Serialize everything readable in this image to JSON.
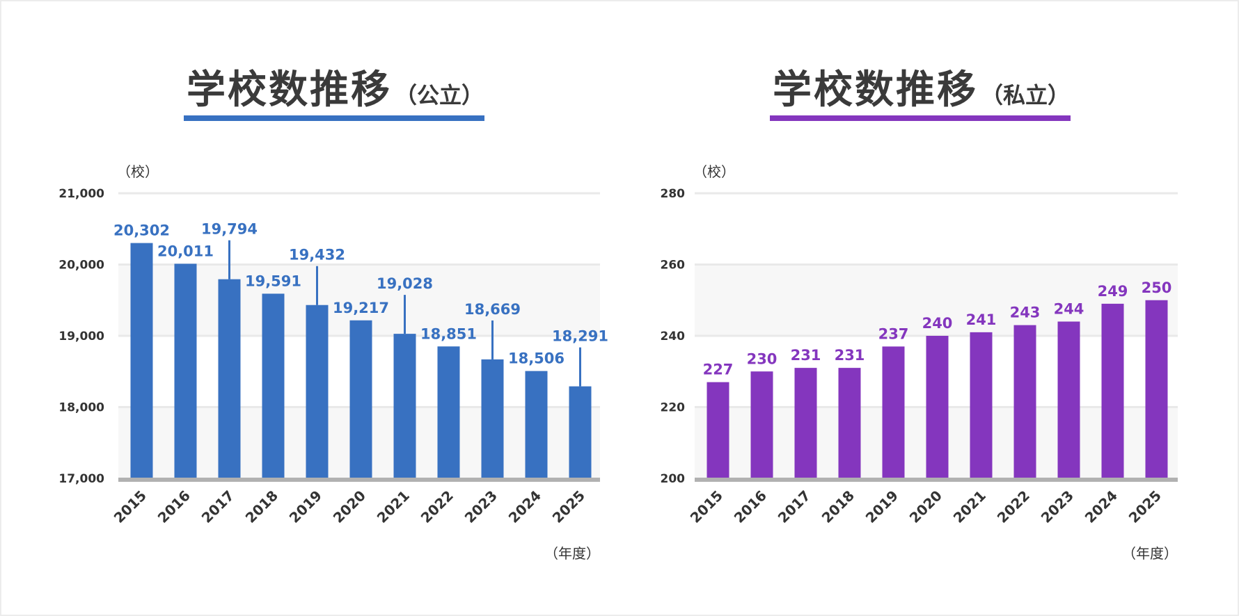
{
  "chart_data": [
    {
      "type": "bar",
      "title": "学校数推移",
      "subtitle": "（公立）",
      "ylabel": "（校）",
      "xlabel": "（年度）",
      "categories": [
        "2015",
        "2016",
        "2017",
        "2018",
        "2019",
        "2020",
        "2021",
        "2022",
        "2023",
        "2024",
        "2025"
      ],
      "values": [
        20302,
        20011,
        19794,
        19591,
        19432,
        19217,
        19028,
        18851,
        18669,
        18506,
        18291
      ],
      "value_labels": [
        "20,302",
        "20,011",
        "19,794",
        "19,591",
        "19,432",
        "19,217",
        "19,028",
        "18,851",
        "18,669",
        "18,506",
        "18,291"
      ],
      "ylim": [
        17000,
        21000
      ],
      "yticks": [
        17000,
        18000,
        19000,
        20000,
        21000
      ],
      "ytick_labels": [
        "17,000",
        "18,000",
        "19,000",
        "20,000",
        "21,000"
      ],
      "grid": true,
      "color": "#3871c1"
    },
    {
      "type": "bar",
      "title": "学校数推移",
      "subtitle": "（私立）",
      "ylabel": "（校）",
      "xlabel": "（年度）",
      "categories": [
        "2015",
        "2016",
        "2017",
        "2018",
        "2019",
        "2020",
        "2021",
        "2022",
        "2023",
        "2024",
        "2025"
      ],
      "values": [
        227,
        230,
        231,
        231,
        237,
        240,
        241,
        243,
        244,
        249,
        250
      ],
      "value_labels": [
        "227",
        "230",
        "231",
        "231",
        "237",
        "240",
        "241",
        "243",
        "244",
        "249",
        "250"
      ],
      "ylim": [
        200,
        280
      ],
      "yticks": [
        200,
        220,
        240,
        260,
        280
      ],
      "ytick_labels": [
        "200",
        "220",
        "240",
        "260",
        "280"
      ],
      "grid": true,
      "color": "#8436be"
    }
  ]
}
